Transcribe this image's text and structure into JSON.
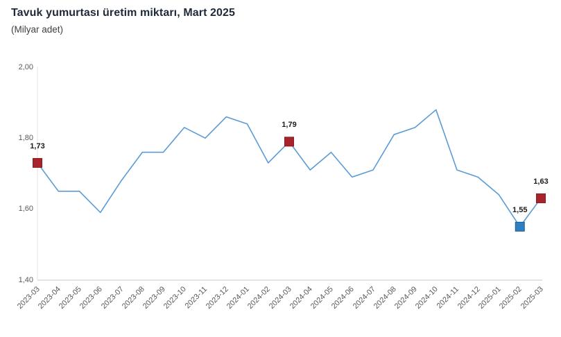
{
  "header": {
    "title": "Tavuk yumurtası üretim miktarı, Mart 2025",
    "subtitle": "(Milyar adet)"
  },
  "chart_data": {
    "type": "line",
    "title": "Tavuk yumurtası üretim miktarı, Mart 2025",
    "unit_label": "(Milyar adet)",
    "categories": [
      "2023-03",
      "2023-04",
      "2023-05",
      "2023-06",
      "2023-07",
      "2023-08",
      "2023-09",
      "2023-10",
      "2023-11",
      "2023-12",
      "2024-01",
      "2024-02",
      "2024-03",
      "2024-04",
      "2024-05",
      "2024-06",
      "2024-07",
      "2024-08",
      "2024-09",
      "2024-10",
      "2024-11",
      "2024-12",
      "2025-01",
      "2025-02",
      "2025-03"
    ],
    "values": [
      1.73,
      1.65,
      1.65,
      1.59,
      1.68,
      1.76,
      1.76,
      1.83,
      1.8,
      1.86,
      1.84,
      1.73,
      1.79,
      1.71,
      1.76,
      1.69,
      1.71,
      1.81,
      1.83,
      1.88,
      1.71,
      1.69,
      1.64,
      1.55,
      1.63
    ],
    "xlabel": "",
    "ylabel": "",
    "ylim": [
      1.4,
      2.0
    ],
    "y_ticks": [
      {
        "value": 2.0,
        "label": "2,00"
      },
      {
        "value": 1.8,
        "label": "1,80"
      },
      {
        "value": 1.6,
        "label": "1,60"
      },
      {
        "value": 1.4,
        "label": "1,40"
      }
    ],
    "grid": false,
    "legend_position": "none",
    "line_color": "#5b9bd5",
    "axis_line_color": "#dcdcdc",
    "highlighted_points": [
      {
        "category": "2023-03",
        "index": 0,
        "value": 1.73,
        "label": "1,73",
        "color": "#a8232a",
        "border": "#8c1a20"
      },
      {
        "category": "2024-03",
        "index": 12,
        "value": 1.79,
        "label": "1,79",
        "color": "#a8232a",
        "border": "#8c1a20"
      },
      {
        "category": "2025-02",
        "index": 23,
        "value": 1.55,
        "label": "1,55",
        "color": "#2e7fc2",
        "border": "#1f5d94"
      },
      {
        "category": "2025-03",
        "index": 24,
        "value": 1.63,
        "label": "1,63",
        "color": "#a8232a",
        "border": "#8c1a20"
      }
    ]
  }
}
